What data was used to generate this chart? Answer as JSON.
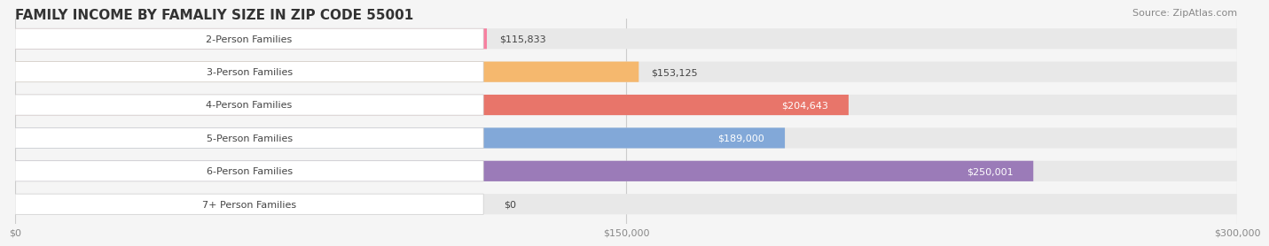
{
  "title": "FAMILY INCOME BY FAMALIY SIZE IN ZIP CODE 55001",
  "source": "Source: ZipAtlas.com",
  "categories": [
    "2-Person Families",
    "3-Person Families",
    "4-Person Families",
    "5-Person Families",
    "6-Person Families",
    "7+ Person Families"
  ],
  "values": [
    115833,
    153125,
    204643,
    189000,
    250001,
    0
  ],
  "bar_colors": [
    "#F780A0",
    "#F5B86E",
    "#E8756A",
    "#82A8D8",
    "#9B7BB8",
    "#72C8CC"
  ],
  "label_colors": [
    "#555555",
    "#555555",
    "#ffffff",
    "#ffffff",
    "#ffffff",
    "#555555"
  ],
  "xlim": [
    0,
    300000
  ],
  "xticks": [
    0,
    150000,
    300000
  ],
  "xtick_labels": [
    "$0",
    "$150,000",
    "$300,000"
  ],
  "background_color": "#f5f5f5",
  "bar_background": "#e8e8e8",
  "title_fontsize": 11,
  "source_fontsize": 8,
  "label_fontsize": 8,
  "value_fontsize": 8
}
